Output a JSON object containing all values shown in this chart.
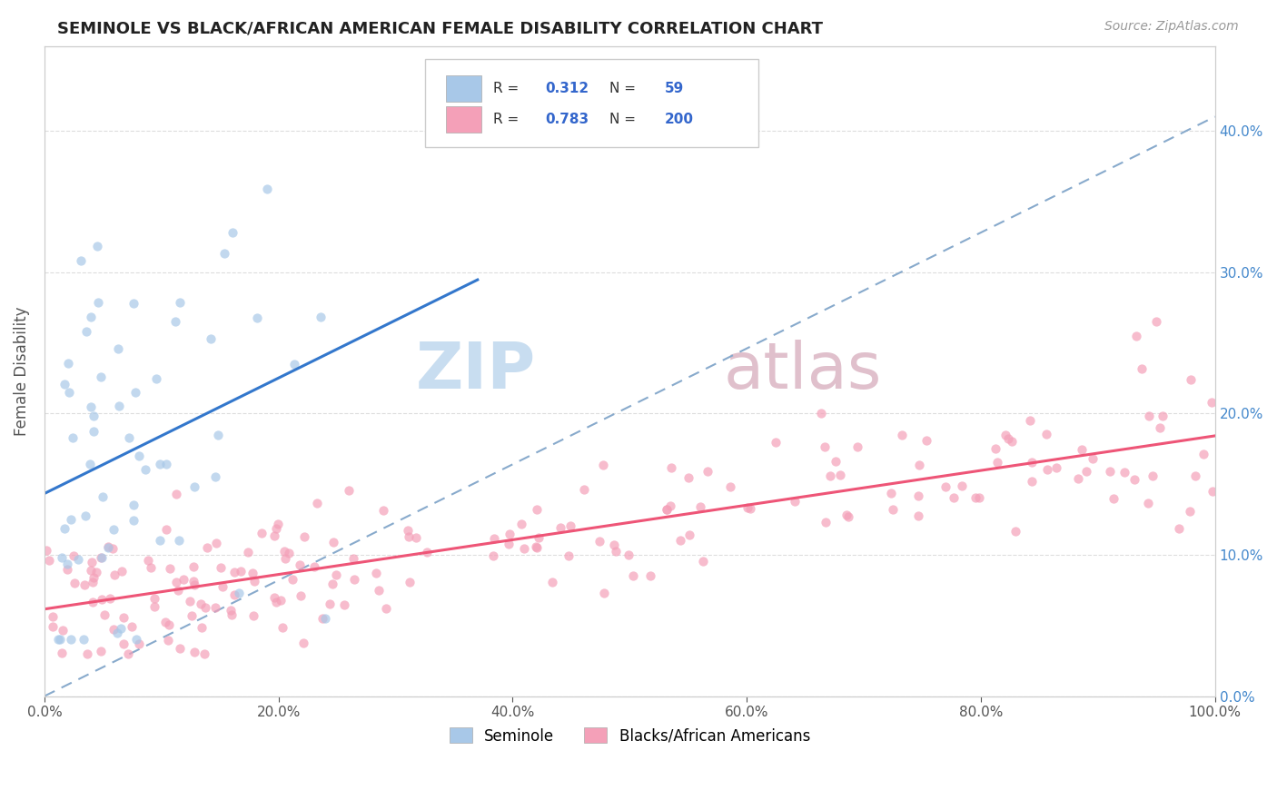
{
  "title": "SEMINOLE VS BLACK/AFRICAN AMERICAN FEMALE DISABILITY CORRELATION CHART",
  "source_text": "Source: ZipAtlas.com",
  "ylabel": "Female Disability",
  "legend_label1": "Seminole",
  "legend_label2": "Blacks/African Americans",
  "R1": 0.312,
  "N1": 59,
  "R2": 0.783,
  "N2": 200,
  "color1": "#a8c8e8",
  "color2": "#f4a0b8",
  "line_color1": "#3377cc",
  "line_color2": "#ee5577",
  "dashed_line_color": "#88aacc",
  "background_color": "#ffffff",
  "title_color": "#222222",
  "title_fontsize": 13,
  "axis_label_color": "#555555",
  "right_tick_color": "#4488cc",
  "watermark_color": "#c8ddf0",
  "watermark_color2": "#e0c0cc",
  "xlim": [
    0.0,
    1.0
  ],
  "ylim": [
    0.0,
    0.46
  ],
  "ytick_values": [
    0.0,
    0.1,
    0.2,
    0.3,
    0.4
  ],
  "ytick_labels_right": [
    "0.0%",
    "10.0%",
    "20.0%",
    "30.0%",
    "40.0%"
  ],
  "xtick_values": [
    0.0,
    0.2,
    0.4,
    0.6,
    0.8,
    1.0
  ],
  "xtick_labels": [
    "0.0%",
    "20.0%",
    "40.0%",
    "60.0%",
    "80.0%",
    "100.0%"
  ]
}
